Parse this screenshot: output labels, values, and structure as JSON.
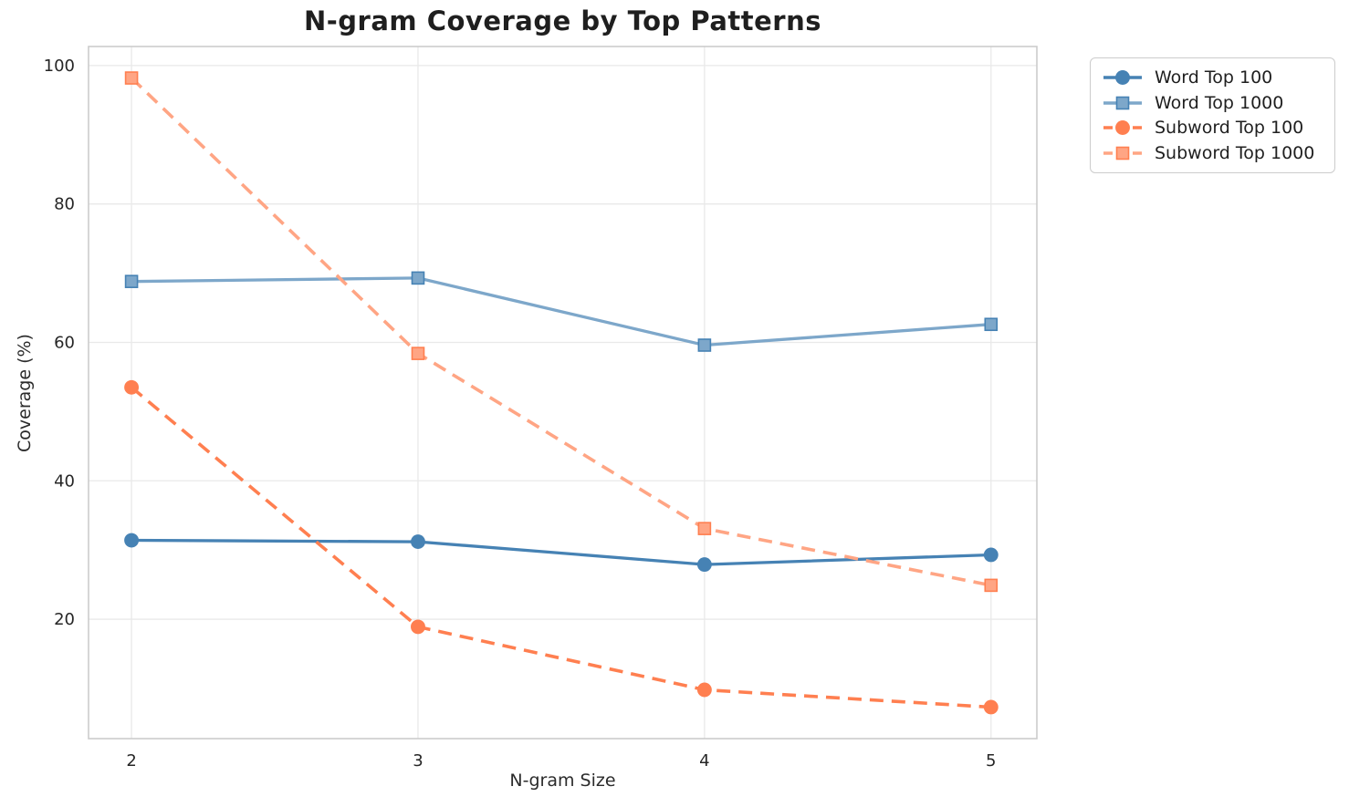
{
  "figure": {
    "background": "#ffffff",
    "text_color": "#262626",
    "grid_color": "#e9e9e9",
    "spine_color": "#cccccc"
  },
  "chart_data": {
    "type": "line",
    "title": "N-gram Coverage by Top Patterns",
    "xlabel": "N-gram Size",
    "ylabel": "Coverage (%)",
    "x": [
      2,
      3,
      4,
      5
    ],
    "xticks": [
      2,
      3,
      4,
      5
    ],
    "yticks": [
      20,
      40,
      60,
      80,
      100
    ],
    "xlim": [
      1.85,
      5.16
    ],
    "ylim": [
      2.75,
      102.75
    ],
    "grid": true,
    "legend_position": "outside-upper-right",
    "series": [
      {
        "name": "Word Top 100",
        "values": [
          31.4,
          31.2,
          27.9,
          29.3
        ],
        "color": "#4682B4",
        "edge": "#4682B4",
        "line": "solid",
        "marker": "circle"
      },
      {
        "name": "Word Top 1000",
        "values": [
          68.8,
          69.3,
          59.6,
          62.6
        ],
        "color": "#7DA7CA",
        "edge": "#4682B4",
        "line": "solid",
        "marker": "square"
      },
      {
        "name": "Subword Top 100",
        "values": [
          53.5,
          18.9,
          9.8,
          7.3
        ],
        "color": "#FF7F50",
        "edge": "#FF7F50",
        "line": "dashed",
        "marker": "circle"
      },
      {
        "name": "Subword Top 1000",
        "values": [
          98.2,
          58.4,
          33.1,
          24.9
        ],
        "color": "#FFA584",
        "edge": "#FF7F50",
        "line": "dashed",
        "marker": "square"
      }
    ]
  }
}
